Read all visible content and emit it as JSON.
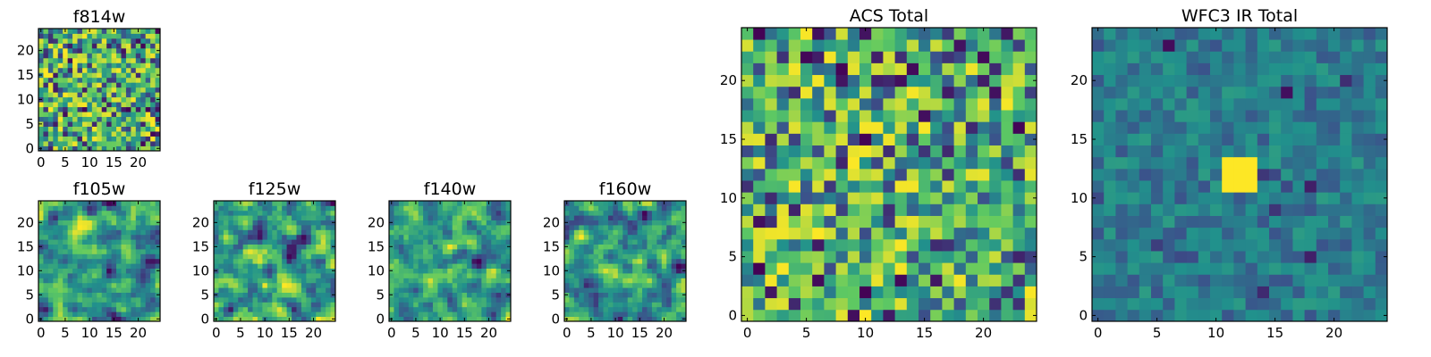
{
  "figure": {
    "description_free": true
  },
  "colormap": {
    "name": "viridis",
    "stops": [
      "#440154",
      "#3b528b",
      "#21918c",
      "#5ec962",
      "#fde725"
    ]
  },
  "chart_data": [
    {
      "id": "f814w",
      "type": "heatmap",
      "title": "f814w",
      "grid_size": 25,
      "xlim": [
        0,
        24
      ],
      "ylim": [
        0,
        24
      ],
      "xticks": [
        0,
        5,
        10,
        15,
        20
      ],
      "yticks": [
        0,
        5,
        10,
        15,
        20
      ],
      "seed": 814,
      "smooth": 0,
      "low_bias": 0.72,
      "peak": null
    },
    {
      "id": "f105w",
      "type": "heatmap",
      "title": "f105w",
      "grid_size": 25,
      "xlim": [
        0,
        24
      ],
      "ylim": [
        0,
        24
      ],
      "xticks": [
        0,
        5,
        10,
        15,
        20
      ],
      "yticks": [
        0,
        5,
        10,
        15,
        20
      ],
      "seed": 105,
      "smooth": 1,
      "low_bias": 0.62,
      "peak": null
    },
    {
      "id": "f125w",
      "type": "heatmap",
      "title": "f125w",
      "grid_size": 25,
      "xlim": [
        0,
        24
      ],
      "ylim": [
        0,
        24
      ],
      "xticks": [
        0,
        5,
        10,
        15,
        20
      ],
      "yticks": [
        0,
        5,
        10,
        15,
        20
      ],
      "seed": 125,
      "smooth": 1,
      "low_bias": 0.64,
      "peak": null
    },
    {
      "id": "f140w",
      "type": "heatmap",
      "title": "f140w",
      "grid_size": 25,
      "xlim": [
        0,
        24
      ],
      "ylim": [
        0,
        24
      ],
      "xticks": [
        0,
        5,
        10,
        15,
        20
      ],
      "yticks": [
        0,
        5,
        10,
        15,
        20
      ],
      "seed": 140,
      "smooth": 1,
      "low_bias": 0.66,
      "peak": null
    },
    {
      "id": "f160w",
      "type": "heatmap",
      "title": "f160w",
      "grid_size": 25,
      "xlim": [
        0,
        24
      ],
      "ylim": [
        0,
        24
      ],
      "xticks": [
        0,
        5,
        10,
        15,
        20
      ],
      "yticks": [
        0,
        5,
        10,
        15,
        20
      ],
      "seed": 160,
      "smooth": 1,
      "low_bias": 0.6,
      "peak": null
    },
    {
      "id": "acs_total",
      "type": "heatmap",
      "title": "ACS Total",
      "grid_size": 25,
      "xlim": [
        0,
        24
      ],
      "ylim": [
        0,
        24
      ],
      "xticks": [
        0,
        5,
        10,
        15,
        20
      ],
      "yticks": [
        0,
        5,
        10,
        15,
        20
      ],
      "seed": 2024,
      "smooth": 0,
      "low_bias": 0.7,
      "peak": null
    },
    {
      "id": "wfc3_ir_total",
      "type": "heatmap",
      "title": "WFC3 IR Total",
      "grid_size": 25,
      "xlim": [
        0,
        24
      ],
      "ylim": [
        0,
        24
      ],
      "xticks": [
        0,
        5,
        10,
        15,
        20
      ],
      "yticks": [
        0,
        5,
        10,
        15,
        20
      ],
      "seed": 3,
      "smooth": 0,
      "low_bias": 0.5,
      "peak": {
        "x": [
          11,
          13
        ],
        "y": [
          11,
          13
        ],
        "value": 1.0
      }
    }
  ]
}
